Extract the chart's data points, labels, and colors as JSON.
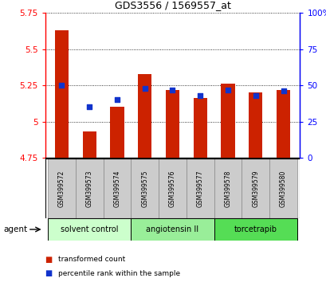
{
  "title": "GDS3556 / 1569557_at",
  "samples": [
    "GSM399572",
    "GSM399573",
    "GSM399574",
    "GSM399575",
    "GSM399576",
    "GSM399577",
    "GSM399578",
    "GSM399579",
    "GSM399580"
  ],
  "transformed_count": [
    5.63,
    4.93,
    5.1,
    5.33,
    5.22,
    5.16,
    5.26,
    5.2,
    5.22
  ],
  "percentile_rank": [
    50,
    35,
    40,
    48,
    47,
    43,
    47,
    43,
    46
  ],
  "ylim_left": [
    4.75,
    5.75
  ],
  "ylim_right": [
    0,
    100
  ],
  "yticks_left": [
    4.75,
    5.0,
    5.25,
    5.5,
    5.75
  ],
  "yticks_right": [
    0,
    25,
    50,
    75,
    100
  ],
  "ytick_labels_left": [
    "4.75",
    "5",
    "5.25",
    "5.5",
    "5.75"
  ],
  "ytick_labels_right": [
    "0",
    "25",
    "50",
    "75",
    "100%"
  ],
  "bar_color": "#cc2200",
  "dot_color": "#1133cc",
  "agent_groups": [
    {
      "label": "solvent control",
      "indices": [
        0,
        1,
        2
      ],
      "color": "#ccffcc"
    },
    {
      "label": "angiotensin II",
      "indices": [
        3,
        4,
        5
      ],
      "color": "#99ee99"
    },
    {
      "label": "torcetrapib",
      "indices": [
        6,
        7,
        8
      ],
      "color": "#55dd55"
    }
  ],
  "agent_label": "agent",
  "bar_width": 0.5,
  "baseline": 4.75
}
